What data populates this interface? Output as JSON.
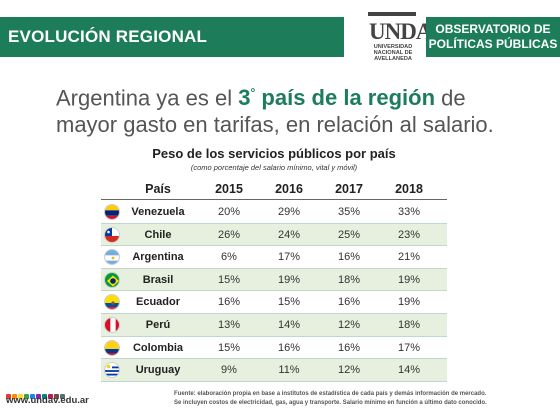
{
  "header": {
    "section_title": "EVOLUCIÓN REGIONAL",
    "right_title_line1": "OBSERVATORIO DE",
    "right_title_line2": "POLÍTICAS PÚBLICAS",
    "logo_mark": "UNDAV",
    "logo_sub": "UNIVERSIDAD NACIONAL DE AVELLANEDA",
    "brand_color": "#1d7d5b"
  },
  "headline": {
    "part1": "Argentina ya es el ",
    "rank": "3",
    "rank_suffix": "°",
    "part2": " país de la región",
    "part3": " de mayor gasto en tarifas, en relación al salario."
  },
  "table": {
    "title": "Peso de los servicios públicos por país",
    "subtitle": "(como porcentaje del salario mínimo, vital y móvil)",
    "columns": [
      "País",
      "2015",
      "2016",
      "2017",
      "2018"
    ],
    "rows": [
      {
        "country": "Venezuela",
        "flag": "venezuela-flag",
        "values": [
          "20%",
          "29%",
          "35%",
          "33%"
        ]
      },
      {
        "country": "Chile",
        "flag": "chile-flag",
        "values": [
          "26%",
          "24%",
          "25%",
          "23%"
        ]
      },
      {
        "country": "Argentina",
        "flag": "argentina-flag",
        "values": [
          "6%",
          "17%",
          "16%",
          "21%"
        ]
      },
      {
        "country": "Brasil",
        "flag": "brasil-flag",
        "values": [
          "15%",
          "19%",
          "18%",
          "19%"
        ]
      },
      {
        "country": "Ecuador",
        "flag": "ecuador-flag",
        "values": [
          "16%",
          "15%",
          "16%",
          "19%"
        ]
      },
      {
        "country": "Perú",
        "flag": "peru-flag",
        "values": [
          "13%",
          "14%",
          "12%",
          "18%"
        ]
      },
      {
        "country": "Colombia",
        "flag": "colombia-flag",
        "values": [
          "15%",
          "16%",
          "16%",
          "17%"
        ]
      },
      {
        "country": "Uruguay",
        "flag": "uruguay-flag",
        "values": [
          "9%",
          "11%",
          "12%",
          "14%"
        ]
      }
    ]
  },
  "footer": {
    "website": "www.undav.edu.ar",
    "source_line1": "Fuente: elaboración propia en base a institutos de estadística de cada país y demás información de mercado.",
    "source_line2": "Se incluyen costos de electricidad, gas, agua y transporte. Salario mínimo en función a último dato conocido.",
    "dot_colors": [
      "#e53935",
      "#fb8c00",
      "#fdd835",
      "#43a047",
      "#1e88e5",
      "#8e24aa",
      "#00897b",
      "#c2185b",
      "#6d4c41",
      "#546e7a"
    ]
  }
}
